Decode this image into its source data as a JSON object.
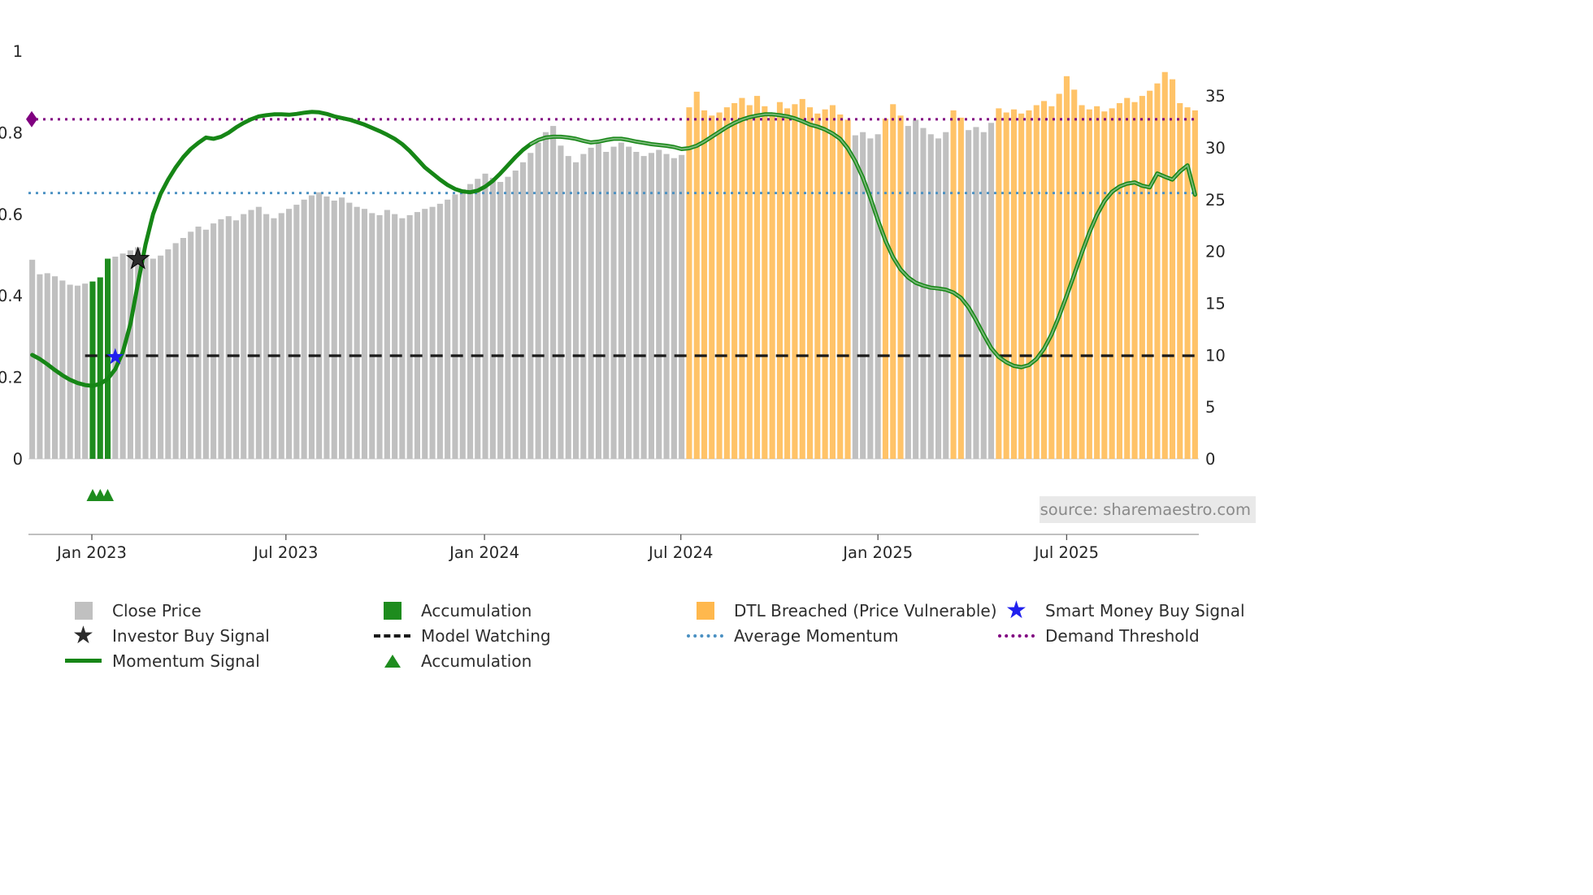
{
  "page": {
    "source_label": "source: sharemaestro.com"
  },
  "legend": {
    "close_price": "Close Price",
    "investor_buy_signal": "Investor Buy Signal",
    "momentum_signal": "Momentum Signal",
    "accumulation_bar": "Accumulation",
    "model_watching": "Model Watching",
    "accumulation_marker": "Accumulation",
    "dtl_breached": "DTL Breached (Price Vulnerable)",
    "average_momentum": "Average Momentum",
    "smart_money_buy_signal": "Smart Money Buy Signal",
    "demand_threshold": "Demand Threshold"
  },
  "chart_data": {
    "type": "bar",
    "subtype": "weekly price bars + momentum line overlay, dual y-axes",
    "start_date": "2022-11-07",
    "interval_days": 7,
    "x_axis": {
      "tick_labels": [
        "Jan 2023",
        "Jul 2023",
        "Jan 2024",
        "Jul 2024",
        "Jan 2025",
        "Jul 2025"
      ],
      "tick_weeks": [
        7.9,
        33.6,
        59.9,
        85.9,
        112.0,
        137.0
      ]
    },
    "left_axis": {
      "ticks": [
        0,
        0.2,
        0.4,
        0.6,
        0.8,
        1
      ],
      "range": [
        0,
        1.1
      ],
      "series": "momentum"
    },
    "right_axis": {
      "ticks": [
        0,
        5,
        10,
        15,
        20,
        25,
        30,
        35
      ],
      "range": [
        0,
        38
      ],
      "series": "price"
    },
    "series": {
      "close_price_bars": {
        "axis": "right",
        "values": [
          19.2,
          17.8,
          17.9,
          17.6,
          17.2,
          16.8,
          16.7,
          16.9,
          17.1,
          17.5,
          19.3,
          19.5,
          19.8,
          20.1,
          20.4,
          19.7,
          19.3,
          19.6,
          20.2,
          20.8,
          21.3,
          21.9,
          22.4,
          22.1,
          22.7,
          23.1,
          23.4,
          23.0,
          23.6,
          24.0,
          24.3,
          23.6,
          23.2,
          23.7,
          24.1,
          24.5,
          25.0,
          25.4,
          25.7,
          25.3,
          24.9,
          25.2,
          24.7,
          24.3,
          24.1,
          23.7,
          23.5,
          24.0,
          23.6,
          23.2,
          23.5,
          23.8,
          24.1,
          24.3,
          24.6,
          25.0,
          25.5,
          26.0,
          26.5,
          27.0,
          27.5,
          27.1,
          26.7,
          27.2,
          27.8,
          28.6,
          29.5,
          30.5,
          31.5,
          32.1,
          30.2,
          29.2,
          28.6,
          29.4,
          30.0,
          30.4,
          29.6,
          30.1,
          30.5,
          30.1,
          29.6,
          29.2,
          29.5,
          29.8,
          29.4,
          29.0,
          29.3,
          33.9,
          35.4,
          33.6,
          33.1,
          33.4,
          33.9,
          34.3,
          34.8,
          34.1,
          35.0,
          34.0,
          33.4,
          34.4,
          33.8,
          34.2,
          34.7,
          33.9,
          33.3,
          33.7,
          34.1,
          33.2,
          32.7,
          31.2,
          31.5,
          30.9,
          31.3,
          32.8,
          34.2,
          33.1,
          32.1,
          32.7,
          31.9,
          31.3,
          30.9,
          31.5,
          33.6,
          32.9,
          31.7,
          32.0,
          31.5,
          32.4,
          33.8,
          33.4,
          33.7,
          33.3,
          33.6,
          34.1,
          34.5,
          34.0,
          35.2,
          36.9,
          35.6,
          34.1,
          33.7,
          34.0,
          33.5,
          33.8,
          34.3,
          34.8,
          34.4,
          35.0,
          35.5,
          36.2,
          37.3,
          36.6,
          34.3,
          33.9,
          33.6
        ]
      },
      "bar_state_runs": [
        {
          "state": "close",
          "from": 0,
          "to": 7
        },
        {
          "state": "accumulation",
          "from": 8,
          "to": 10
        },
        {
          "state": "close",
          "from": 11,
          "to": 86
        },
        {
          "state": "dtl",
          "from": 87,
          "to": 108
        },
        {
          "state": "close",
          "from": 109,
          "to": 112
        },
        {
          "state": "dtl",
          "from": 113,
          "to": 115
        },
        {
          "state": "close",
          "from": 116,
          "to": 121
        },
        {
          "state": "dtl",
          "from": 122,
          "to": 123
        },
        {
          "state": "close",
          "from": 124,
          "to": 127
        },
        {
          "state": "dtl",
          "from": 128,
          "to": 154
        }
      ],
      "momentum_signal": {
        "axis": "left",
        "values": [
          0.255,
          0.245,
          0.232,
          0.218,
          0.205,
          0.194,
          0.186,
          0.181,
          0.179,
          0.184,
          0.196,
          0.22,
          0.262,
          0.33,
          0.43,
          0.525,
          0.6,
          0.65,
          0.685,
          0.715,
          0.74,
          0.76,
          0.775,
          0.788,
          0.785,
          0.79,
          0.8,
          0.813,
          0.824,
          0.833,
          0.84,
          0.843,
          0.845,
          0.845,
          0.844,
          0.846,
          0.849,
          0.851,
          0.85,
          0.846,
          0.84,
          0.836,
          0.832,
          0.826,
          0.82,
          0.812,
          0.804,
          0.795,
          0.785,
          0.772,
          0.755,
          0.735,
          0.715,
          0.7,
          0.685,
          0.672,
          0.662,
          0.656,
          0.654,
          0.658,
          0.668,
          0.682,
          0.7,
          0.72,
          0.74,
          0.758,
          0.772,
          0.782,
          0.788,
          0.79,
          0.79,
          0.788,
          0.785,
          0.78,
          0.776,
          0.778,
          0.782,
          0.785,
          0.785,
          0.782,
          0.778,
          0.775,
          0.772,
          0.77,
          0.768,
          0.765,
          0.76,
          0.762,
          0.768,
          0.778,
          0.79,
          0.802,
          0.814,
          0.824,
          0.832,
          0.838,
          0.842,
          0.845,
          0.845,
          0.843,
          0.84,
          0.835,
          0.828,
          0.82,
          0.815,
          0.808,
          0.798,
          0.785,
          0.762,
          0.73,
          0.69,
          0.64,
          0.585,
          0.535,
          0.495,
          0.465,
          0.445,
          0.432,
          0.425,
          0.42,
          0.418,
          0.415,
          0.408,
          0.395,
          0.372,
          0.34,
          0.305,
          0.272,
          0.25,
          0.237,
          0.228,
          0.225,
          0.23,
          0.245,
          0.27,
          0.305,
          0.35,
          0.4,
          0.452,
          0.505,
          0.555,
          0.598,
          0.632,
          0.655,
          0.668,
          0.675,
          0.678,
          0.67,
          0.666,
          0.7,
          0.692,
          0.685,
          0.705,
          0.72,
          0.648
        ]
      }
    },
    "reference_lines": {
      "demand_threshold": {
        "value": 0.833,
        "style": "dotted"
      },
      "average_momentum": {
        "value": 0.652,
        "style": "dotted"
      },
      "model_watching": {
        "value": 0.253,
        "style": "dashed",
        "start_week": 7
      }
    },
    "markers": {
      "investor_buy_signal": {
        "week_index": 14,
        "value": 0.49,
        "shape": "star"
      },
      "smart_money_buy_signal": {
        "week_index": 11,
        "value": 0.25,
        "shape": "star"
      },
      "accumulation_triangle_weeks": [
        8,
        9,
        10
      ],
      "demand_threshold_diamond_value": 0.833
    },
    "momentum_overlay_start_week": 66,
    "colors": {
      "close": "#c0c0c0",
      "accumulation": "#1e8c1e",
      "dtl": "#ffb84d",
      "momentum": "#168616",
      "average_momentum": "#4a90c2",
      "demand_threshold": "#800080",
      "model_watching": "#1a1a1a",
      "smart_money": "#2020ee",
      "investor": "#2b2b2b"
    }
  }
}
